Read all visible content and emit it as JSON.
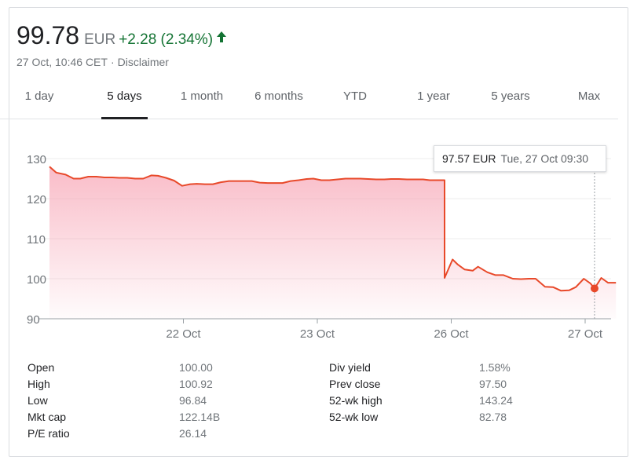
{
  "quote": {
    "price": "99.78",
    "currency": "EUR",
    "change": "+2.28 (2.34%)",
    "timestamp": "27 Oct, 10:46 CET",
    "disclaimer": "Disclaimer",
    "up_color": "#137333"
  },
  "tabs": [
    "1 day",
    "5 days",
    "1 month",
    "6 months",
    "YTD",
    "1 year",
    "5 years",
    "Max"
  ],
  "active_tab": "5 days",
  "tooltip": {
    "value": "97.57 EUR",
    "date": "Tue, 27 Oct 09:30"
  },
  "stats": {
    "left": [
      {
        "label": "Open",
        "value": "100.00"
      },
      {
        "label": "High",
        "value": "100.92"
      },
      {
        "label": "Low",
        "value": "96.84"
      },
      {
        "label": "Mkt cap",
        "value": "122.14B"
      },
      {
        "label": "P/E ratio",
        "value": "26.14"
      }
    ],
    "right": [
      {
        "label": "Div yield",
        "value": "1.58%"
      },
      {
        "label": "Prev close",
        "value": "97.50"
      },
      {
        "label": "52-wk high",
        "value": "143.24"
      },
      {
        "label": "52-wk low",
        "value": "82.78"
      }
    ]
  },
  "chart_data": {
    "type": "line",
    "title": "",
    "xlabel": "",
    "ylabel": "",
    "ylim": [
      90,
      130
    ],
    "yticks": [
      130,
      120,
      110,
      100,
      90
    ],
    "grid": true,
    "line_color": "#e8492a",
    "fill_color": "#f7a6b6",
    "x_unit": "trading day index (0 = start of 21 Oct session, 1 day per session)",
    "x_range": [
      0,
      4.23
    ],
    "x_ticks": [
      {
        "x": 1,
        "label": "22 Oct"
      },
      {
        "x": 2,
        "label": "23 Oct"
      },
      {
        "x": 3,
        "label": "26 Oct"
      },
      {
        "x": 4,
        "label": "27 Oct"
      }
    ],
    "highlight": {
      "x": 4.07,
      "y": 97.57
    },
    "series": [
      {
        "x": [
          0,
          0.05,
          0.12,
          0.18,
          0.23,
          0.29,
          0.35,
          0.41,
          0.47,
          0.52,
          0.58,
          0.64,
          0.7,
          0.76,
          0.81,
          0.87,
          0.93,
          0.99,
          1.05,
          1.1,
          1.16,
          1.22,
          1.28,
          1.34,
          1.39,
          1.45,
          1.51,
          1.57,
          1.63,
          1.68,
          1.74,
          1.8,
          1.86,
          1.92,
          1.97,
          2.03,
          2.09,
          2.15,
          2.21,
          2.26,
          2.32,
          2.38,
          2.44,
          2.5,
          2.55,
          2.61,
          2.67,
          2.73,
          2.79,
          2.84,
          2.9,
          2.95,
          2.9501,
          3.01,
          3.05,
          3.1,
          3.16,
          3.2,
          3.27,
          3.33,
          3.39,
          3.46,
          3.52,
          3.58,
          3.63,
          3.7,
          3.76,
          3.82,
          3.88,
          3.93,
          3.99,
          4.04,
          4.07,
          4.12,
          4.17,
          4.23
        ],
        "y": [
          128.0,
          126.5,
          126.0,
          125.0,
          125.0,
          125.5,
          125.5,
          125.3,
          125.3,
          125.2,
          125.2,
          125.0,
          125.0,
          125.8,
          125.7,
          125.2,
          124.5,
          123.2,
          123.6,
          123.7,
          123.6,
          123.6,
          124.1,
          124.4,
          124.4,
          124.4,
          124.4,
          124.0,
          123.9,
          123.9,
          123.9,
          124.4,
          124.6,
          124.9,
          125.0,
          124.6,
          124.6,
          124.8,
          125.0,
          125.0,
          125.0,
          124.9,
          124.8,
          124.8,
          124.9,
          124.9,
          124.8,
          124.8,
          124.8,
          124.6,
          124.6,
          124.6,
          100.2,
          104.8,
          103.5,
          102.3,
          102.0,
          103.0,
          101.6,
          100.9,
          100.9,
          100.0,
          99.9,
          100.0,
          100.0,
          98.0,
          97.9,
          97.0,
          97.1,
          97.9,
          100.0,
          98.8,
          97.57,
          100.2,
          99.0,
          99.0
        ]
      }
    ]
  }
}
